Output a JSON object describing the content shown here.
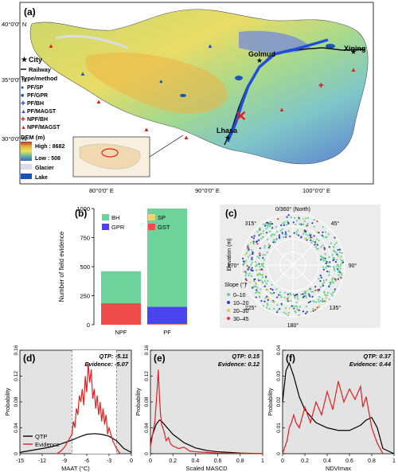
{
  "map": {
    "panel_label": "(a)",
    "lat_ticks": [
      "40°0'0\" N",
      "35°0'0\" N",
      "30°0'0\" N"
    ],
    "lon_ticks": [
      "80°0'0\" E",
      "90°0'0\" E",
      "100°0'0\" E"
    ],
    "cities": [
      "Golmud",
      "Xining",
      "Lhasa"
    ],
    "legend": {
      "city": "City",
      "railway": "Railway",
      "type_method": "Type/method",
      "items": [
        "PF/SP",
        "PF/GPR",
        "PF/BH",
        "PF/MAGST",
        "NPF/BH",
        "NPF/MAGST"
      ],
      "dem_title": "DEM (m)",
      "dem_high": "High : 8682",
      "dem_low": "Low : 508",
      "glacier": "Glacier",
      "lake": "Lake"
    },
    "colors": {
      "pf": "#1f4fd8",
      "npf": "#e02020",
      "railway": "#111111",
      "lake": "#1a52b8",
      "glacier": "#d8dde6"
    }
  },
  "chart_data": [
    {
      "type": "bar",
      "panel_label": "(b)",
      "ylabel": "Number of field evidence",
      "categories": [
        "NPF",
        "PF"
      ],
      "ylim": [
        0,
        1000
      ],
      "yticks": [
        0,
        250,
        500,
        750,
        1000
      ],
      "series": [
        {
          "name": "SP",
          "color": "#f5d36b",
          "values": [
            0,
            2
          ]
        },
        {
          "name": "GST",
          "color": "#f04c4c",
          "values": [
            185,
            5
          ]
        },
        {
          "name": "GPR",
          "color": "#4a43f0",
          "values": [
            0,
            148
          ]
        },
        {
          "name": "BH",
          "color": "#6ed39a",
          "values": [
            275,
            845
          ]
        }
      ],
      "legend_order": [
        "BH",
        "SP",
        "GPR",
        "GST"
      ]
    },
    {
      "type": "scatter",
      "panel_label": "(c)",
      "subtype": "polar",
      "ylabel": "Elevation (m)",
      "angle_labels": [
        "0/360° (North)",
        "45°",
        "90°",
        "135°",
        "180°",
        "225°",
        "270°",
        "315°"
      ],
      "legend_title": "Slope (°)",
      "legend": [
        {
          "name": "0–10",
          "color": "#5fd38d"
        },
        {
          "name": "10–20",
          "color": "#2f3fbf"
        },
        {
          "name": "20–30",
          "color": "#f0c04a"
        },
        {
          "name": "30–45",
          "color": "#e03a3a"
        }
      ]
    },
    {
      "type": "line",
      "panel_label": "(d)",
      "xlabel": "MAAT (°C)",
      "ylabel": "Probability",
      "xlim": [
        -15,
        0
      ],
      "ylim": [
        0,
        0.16
      ],
      "xticks": [
        -15,
        -12,
        -9,
        -6,
        -3,
        0
      ],
      "yticks": [
        0.0,
        0.04,
        0.08,
        0.12,
        0.16
      ],
      "annotation": [
        "QTP: -5.11",
        "Evidence: -5.07"
      ],
      "legend": [
        "QTP",
        "Evidence"
      ],
      "shade_range": [
        -8,
        -2
      ],
      "series": [
        {
          "name": "QTP",
          "color": "#000000",
          "x": [
            -15,
            -14,
            -13,
            -12,
            -11,
            -10,
            -9,
            -8,
            -7,
            -6,
            -5,
            -4,
            -3,
            -2,
            -1,
            0
          ],
          "y": [
            0.002,
            0.004,
            0.006,
            0.008,
            0.01,
            0.013,
            0.017,
            0.021,
            0.026,
            0.03,
            0.031,
            0.03,
            0.027,
            0.02,
            0.008,
            0.002
          ]
        },
        {
          "name": "Evidence",
          "color": "#e02020",
          "x": [
            -10,
            -9.5,
            -9,
            -8.5,
            -8,
            -7.8,
            -7.6,
            -7.4,
            -7.2,
            -7,
            -6.8,
            -6.6,
            -6.4,
            -6.2,
            -6,
            -5.8,
            -5.6,
            -5.4,
            -5.2,
            -5,
            -4.8,
            -4.6,
            -4.4,
            -4.2,
            -4,
            -3.8,
            -3.6,
            -3.4,
            -3.2,
            -3,
            -2.5,
            -2,
            -1.5
          ],
          "y": [
            0,
            0.004,
            0.01,
            0.02,
            0.03,
            0.05,
            0.04,
            0.07,
            0.06,
            0.09,
            0.08,
            0.1,
            0.075,
            0.12,
            0.095,
            0.14,
            0.11,
            0.13,
            0.085,
            0.1,
            0.07,
            0.09,
            0.06,
            0.08,
            0.05,
            0.07,
            0.045,
            0.06,
            0.03,
            0.04,
            0.02,
            0.008,
            0
          ]
        }
      ]
    },
    {
      "type": "line",
      "panel_label": "(e)",
      "xlabel": "Scaled MASCD",
      "ylabel": "Probability",
      "xlim": [
        0,
        1
      ],
      "ylim": [
        0,
        0.16
      ],
      "xticks": [
        0.0,
        0.2,
        0.4,
        0.6,
        0.8,
        1.0
      ],
      "yticks": [
        0.0,
        0.04,
        0.08,
        0.12,
        0.16
      ],
      "annotation": [
        "QTP: 0.15",
        "Evidence: 0.12"
      ],
      "series": [
        {
          "name": "QTP",
          "color": "#000000",
          "x": [
            0,
            0.02,
            0.05,
            0.08,
            0.1,
            0.15,
            0.2,
            0.3,
            0.4,
            0.5,
            0.6,
            0.7,
            0.8,
            1.0
          ],
          "y": [
            0.018,
            0.03,
            0.045,
            0.052,
            0.05,
            0.04,
            0.03,
            0.017,
            0.009,
            0.005,
            0.003,
            0.002,
            0.001,
            0
          ]
        },
        {
          "name": "Evidence",
          "color": "#e02020",
          "x": [
            0,
            0.02,
            0.04,
            0.06,
            0.07,
            0.08,
            0.09,
            0.1,
            0.12,
            0.14,
            0.16,
            0.18,
            0.2,
            0.25,
            0.3,
            0.35,
            0.4,
            0.5,
            0.6,
            1.0
          ],
          "y": [
            0.01,
            0.03,
            0.05,
            0.1,
            0.13,
            0.09,
            0.06,
            0.045,
            0.035,
            0.02,
            0.025,
            0.015,
            0.012,
            0.008,
            0.01,
            0.004,
            0.003,
            0.002,
            0.001,
            0
          ]
        }
      ]
    },
    {
      "type": "line",
      "panel_label": "(f)",
      "xlabel": "NDVImax",
      "ylabel": "Probability",
      "xlim": [
        0,
        1
      ],
      "ylim": [
        0,
        0.04
      ],
      "xticks": [
        0.0,
        0.2,
        0.4,
        0.6,
        0.8,
        1.0
      ],
      "yticks": [
        0.0,
        0.01,
        0.02,
        0.03,
        0.04
      ],
      "annotation": [
        "QTP: 0.37",
        "Evidence: 0.44"
      ],
      "series": [
        {
          "name": "QTP",
          "color": "#000000",
          "x": [
            0,
            0.03,
            0.06,
            0.1,
            0.15,
            0.2,
            0.3,
            0.4,
            0.5,
            0.6,
            0.7,
            0.75,
            0.8,
            0.85,
            0.9,
            1.0
          ],
          "y": [
            0.02,
            0.032,
            0.035,
            0.03,
            0.022,
            0.017,
            0.012,
            0.01,
            0.009,
            0.009,
            0.011,
            0.013,
            0.014,
            0.01,
            0.002,
            0
          ]
        },
        {
          "name": "Evidence",
          "color": "#e02020",
          "x": [
            0,
            0.04,
            0.06,
            0.08,
            0.1,
            0.12,
            0.15,
            0.2,
            0.25,
            0.3,
            0.35,
            0.4,
            0.45,
            0.5,
            0.55,
            0.6,
            0.65,
            0.7,
            0.72,
            0.75,
            0.8,
            0.85,
            0.9
          ],
          "y": [
            0,
            0.005,
            0.01,
            0.012,
            0.015,
            0.012,
            0.01,
            0.018,
            0.012,
            0.02,
            0.015,
            0.024,
            0.017,
            0.028,
            0.02,
            0.025,
            0.021,
            0.026,
            0.018,
            0.022,
            0.01,
            0.004,
            0
          ]
        }
      ]
    }
  ]
}
